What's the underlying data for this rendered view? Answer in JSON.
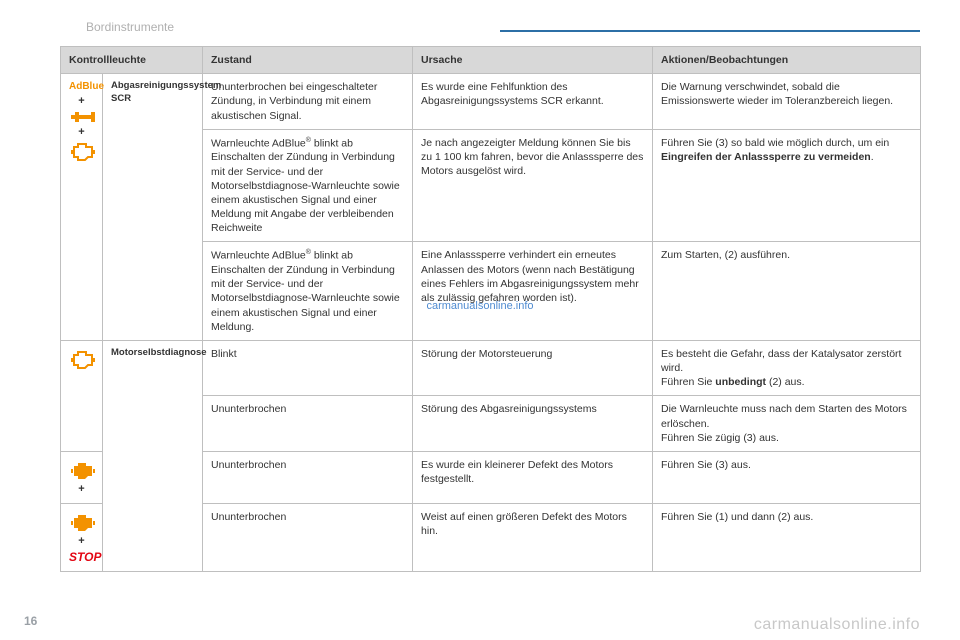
{
  "breadcrumb": "Bordinstrumente",
  "page_number": "16",
  "watermark_center": "carmanualsonline.info",
  "watermark_footer": "carmanualsonline.info",
  "colors": {
    "rule": "#2c6fa6",
    "header_bg": "#d8d8d8",
    "border": "#bfbfbf",
    "icon_orange": "#f39200",
    "stop_red": "#e30613",
    "text": "#333333",
    "muted": "#b0b0b0",
    "watermark_blue": "#3b7ecb",
    "footer_grey": "#c8c8c8"
  },
  "table": {
    "headers": {
      "indicator": "Kontrollleuchte",
      "state": "Zustand",
      "cause": "Ursache",
      "action": "Aktionen/Beobachtungen"
    },
    "groups": [
      {
        "icon_stack": [
          "adblue",
          "plus",
          "wrench",
          "plus",
          "engine_outline"
        ],
        "label": "Abgasreinigungssystem SCR",
        "rows": [
          {
            "state": "Ununterbrochen bei eingeschalteter Zündung, in Verbindung mit einem akustischen Signal.",
            "cause": "Es wurde eine Fehlfunktion des Abgasreinigungssystems SCR erkannt.",
            "action_pre": "Die Warnung verschwindet, sobald die Emissionswerte wieder im Toleranzbereich liegen."
          },
          {
            "state_pre": "Warnleuchte AdBlue",
            "state_sup": "®",
            "state_post": " blinkt ab Einschalten der Zündung in Verbindung mit der Service- und der Motorselbstdiagnose-Warnleuchte sowie einem akustischen Signal und einer Meldung mit Angabe der verbleibenden Reichweite",
            "cause": "Je nach angezeigter Meldung können Sie bis zu 1 100 km fahren, bevor die Anlasssperre des Motors ausgelöst wird.",
            "action_pre": "Führen Sie (3) so bald wie möglich durch, um ein ",
            "action_bold": "Eingreifen der Anlasssperre zu vermeiden",
            "action_post": "."
          },
          {
            "state_pre": "Warnleuchte AdBlue",
            "state_sup": "®",
            "state_post": " blinkt ab Einschalten der Zündung in Verbindung mit der Service- und der Motorselbstdiagnose-Warnleuchte sowie einem akustischen Signal und einer Meldung.",
            "cause": "Eine Anlasssperre verhindert ein erneutes Anlassen des Motors (wenn nach Bestätigung eines Fehlers im Abgasreinigungssystem mehr als zulässig gefahren worden ist).",
            "action_pre": "Zum Starten, (2) ausführen."
          }
        ]
      },
      {
        "icon_stack": [
          "engine_outline"
        ],
        "label": "Motorselbstdiagnose",
        "rows": [
          {
            "state": "Blinkt",
            "cause": "Störung der Motorsteuerung",
            "action_pre": "Es besteht die Gefahr, dass der Katalysator zerstört wird.\nFühren Sie ",
            "action_bold": "unbedingt",
            "action_post": " (2) aus."
          },
          {
            "state": "Ununterbrochen",
            "cause": "Störung des Abgasreinigungssystems",
            "action_pre": "Die Warnleuchte muss nach dem Starten des Motors erlöschen.\nFühren Sie zügig (3) aus."
          }
        ]
      },
      {
        "icon_stack": [
          "engine_solid",
          "plus"
        ],
        "continues_label": true,
        "rows": [
          {
            "state": "Ununterbrochen",
            "cause": "Es wurde ein kleinerer Defekt des Motors festgestellt.",
            "action_pre": "Führen Sie (3) aus."
          }
        ]
      },
      {
        "icon_stack": [
          "engine_solid",
          "plus",
          "stop"
        ],
        "continues_label": true,
        "rows": [
          {
            "state": "Ununterbrochen",
            "cause": "Weist auf einen größeren Defekt des Motors hin.",
            "action_pre": "Führen Sie (1) und dann (2) aus."
          }
        ]
      }
    ]
  }
}
